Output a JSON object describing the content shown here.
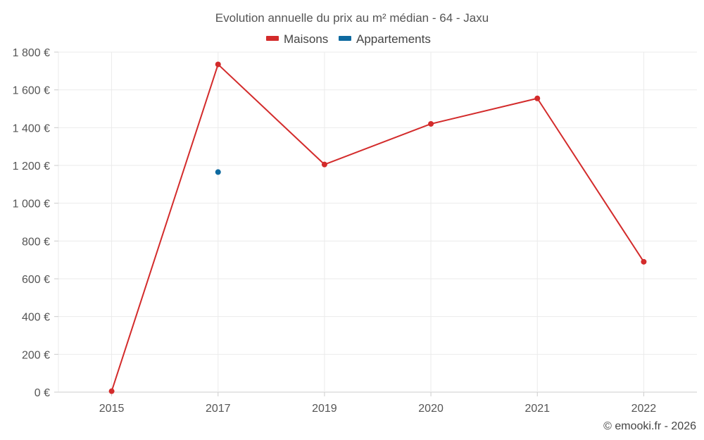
{
  "chart_data": {
    "type": "line",
    "title": "Evolution annuelle du prix au m² médian - 64 - Jaxu",
    "categories": [
      "2015",
      "2017",
      "2019",
      "2020",
      "2021",
      "2022"
    ],
    "series": [
      {
        "name": "Maisons",
        "color": "#d32b2b",
        "values": [
          5,
          1735,
          1205,
          1420,
          1555,
          690
        ]
      },
      {
        "name": "Appartements",
        "color": "#0e6aa0",
        "values": [
          null,
          1165,
          null,
          null,
          null,
          null
        ]
      }
    ],
    "y_ticks": [
      "0 €",
      "200 €",
      "400 €",
      "600 €",
      "800 €",
      "1 000 €",
      "1 200 €",
      "1 400 €",
      "1 600 €",
      "1 800 €"
    ],
    "ylim": [
      0,
      1800
    ],
    "y_step": 200,
    "grid": true,
    "legend_position": "top-center",
    "credit": "© emooki.fr - 2026"
  }
}
